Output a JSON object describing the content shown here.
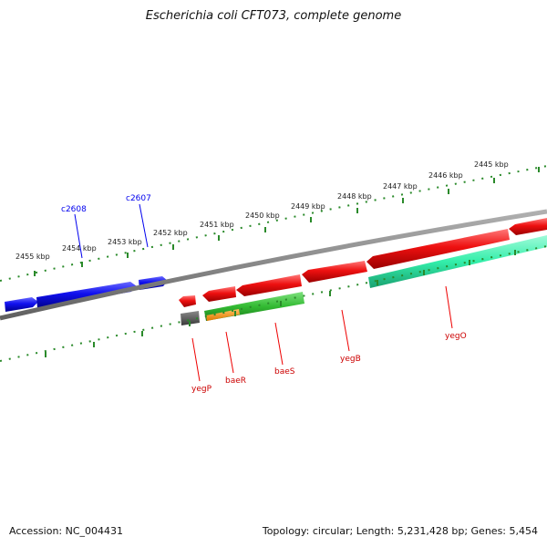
{
  "title": "Escherichia coli CFT073, complete genome",
  "footer": {
    "accession": "Accession: NC_004431",
    "summary": "Topology: circular; Length: 5,231,428 bp; Genes: 5,454"
  },
  "scale": {
    "kbp_labels": [
      "2455 kbp",
      "2454 kbp",
      "2453 kbp",
      "2452 kbp",
      "2451 kbp",
      "2450 kbp",
      "2449 kbp",
      "2448 kbp",
      "2447 kbp",
      "2446 kbp",
      "2445 kbp"
    ]
  },
  "genes": {
    "c2608": "c2608",
    "c2607": "c2607",
    "yegP": "yegP",
    "baeR": "baeR",
    "baeS": "baeS",
    "yegB": "yegB",
    "yegO": "yegO"
  },
  "colors": {
    "forward_strand": "#0000ee",
    "reverse_strand": "#ee0000",
    "backbone": "#808080",
    "ticks": "#2a8a2a",
    "green_feature": "#33bb33",
    "teal_feature": "#33eeaa",
    "orange_feature": "#ff9900",
    "gray_feature": "#555555"
  }
}
